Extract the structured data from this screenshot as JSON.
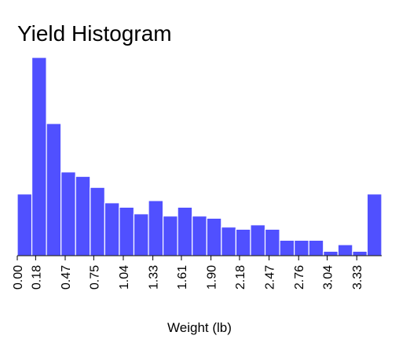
{
  "chart_data": {
    "type": "bar",
    "title": "Yield Histogram",
    "xlabel": "Weight (lb)",
    "ylabel": "",
    "bin_start": 0.0,
    "bin_width": 0.143,
    "values": [
      28,
      90,
      60,
      38,
      36,
      31,
      24,
      22,
      19,
      25,
      18,
      22,
      18,
      17,
      13,
      12,
      14,
      12,
      7,
      7,
      7,
      2,
      5,
      2,
      28
    ],
    "tick_labels": [
      "0.00",
      "0.18",
      "0.47",
      "0.75",
      "1.04",
      "1.33",
      "1.61",
      "1.90",
      "2.18",
      "2.47",
      "2.76",
      "3.04",
      "3.33"
    ],
    "tick_values": [
      0.0,
      0.18,
      0.47,
      0.75,
      1.04,
      1.33,
      1.61,
      1.9,
      2.18,
      2.47,
      2.76,
      3.04,
      3.33
    ],
    "grid": false,
    "legend": "none",
    "colors": {
      "bar": "#5050ff",
      "bar_stroke": "#ffffff",
      "axis": "#000000",
      "text": "#000000",
      "background": "#ffffff"
    }
  }
}
